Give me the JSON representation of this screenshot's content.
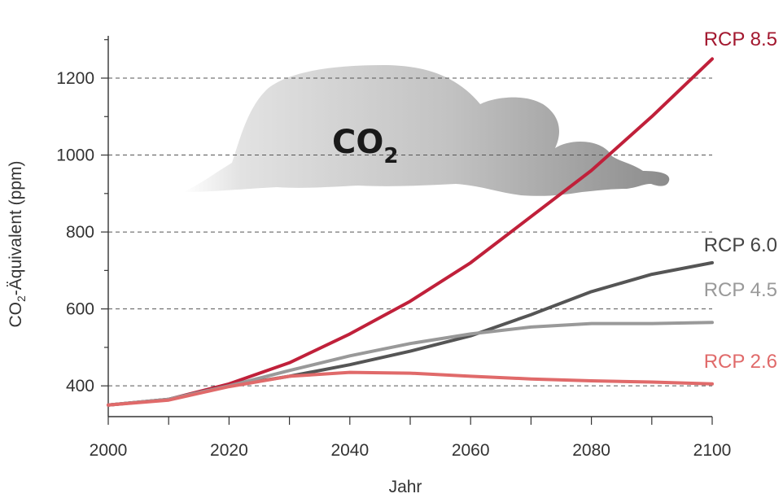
{
  "chart_data": {
    "type": "line",
    "title": "",
    "xlabel": "Jahr",
    "ylabel": {
      "main": "CO",
      "sub": "2",
      "rest": "-Äquivalent (ppm)"
    },
    "xlim": [
      2000,
      2100
    ],
    "ylim": [
      320,
      1310
    ],
    "xticks": [
      2000,
      2020,
      2040,
      2060,
      2080,
      2100
    ],
    "yticks": [
      400,
      600,
      800,
      1000,
      1200
    ],
    "grid": "dashed-horizontal",
    "annotation": {
      "main": "CO",
      "sub": "2"
    },
    "series": [
      {
        "name": "RCP 8.5",
        "color": "#c0203a",
        "x": [
          2000,
          2010,
          2020,
          2030,
          2040,
          2050,
          2060,
          2070,
          2080,
          2090,
          2100
        ],
        "y": [
          350,
          365,
          405,
          460,
          535,
          620,
          720,
          840,
          960,
          1100,
          1250
        ]
      },
      {
        "name": "RCP 6.0",
        "color": "#555555",
        "x": [
          2000,
          2010,
          2020,
          2030,
          2040,
          2050,
          2060,
          2070,
          2080,
          2090,
          2100
        ],
        "y": [
          350,
          365,
          400,
          425,
          455,
          490,
          530,
          585,
          645,
          690,
          720
        ]
      },
      {
        "name": "RCP 4.5",
        "color": "#999999",
        "x": [
          2000,
          2010,
          2020,
          2030,
          2040,
          2050,
          2060,
          2070,
          2080,
          2090,
          2100
        ],
        "y": [
          350,
          365,
          400,
          440,
          478,
          510,
          535,
          553,
          562,
          562,
          565
        ]
      },
      {
        "name": "RCP 2.6",
        "color": "#e06a6a",
        "x": [
          2000,
          2010,
          2020,
          2030,
          2040,
          2050,
          2060,
          2070,
          2080,
          2090,
          2100
        ],
        "y": [
          350,
          363,
          398,
          425,
          435,
          433,
          425,
          418,
          413,
          410,
          405
        ]
      }
    ]
  }
}
